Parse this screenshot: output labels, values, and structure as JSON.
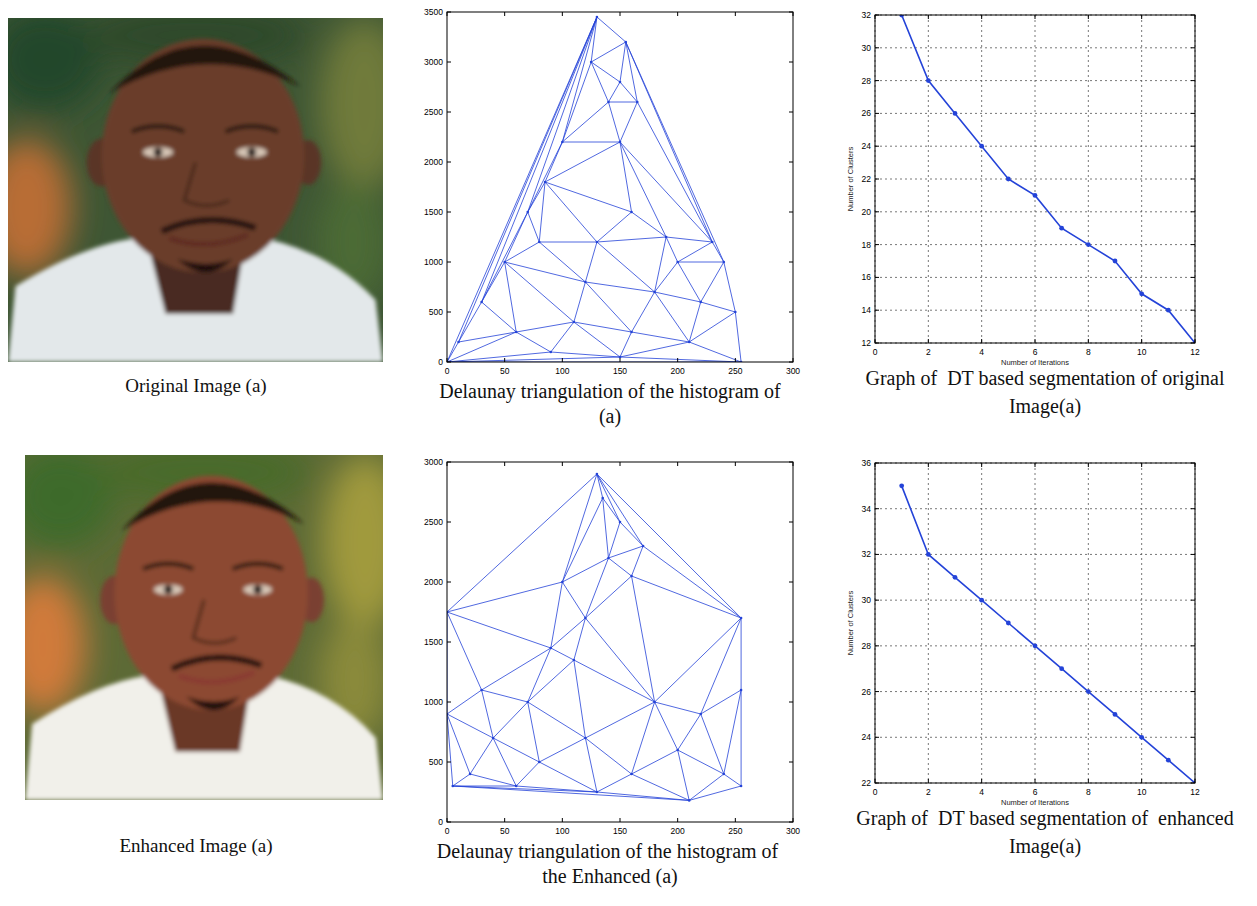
{
  "images": [
    {
      "caption": "Original Image (a)"
    },
    {
      "caption": "Enhanced Image (a)"
    }
  ],
  "chart_data": [
    {
      "type": "mesh",
      "title": "Delaunay triangulation of the histogram of (a)",
      "x": [
        0,
        130,
        255,
        230,
        85,
        150,
        140,
        165,
        100,
        150,
        70,
        160,
        50,
        200,
        240,
        30,
        120,
        180,
        220,
        250,
        10,
        60,
        110,
        160,
        210,
        90,
        150,
        80,
        130,
        190,
        125,
        155
      ],
      "y": [
        0,
        3450,
        0,
        1200,
        1800,
        2800,
        2600,
        2600,
        2200,
        2200,
        1500,
        1500,
        1000,
        1000,
        1000,
        600,
        800,
        700,
        600,
        500,
        200,
        300,
        400,
        300,
        200,
        100,
        50,
        1200,
        1200,
        1250,
        3000,
        3200
      ],
      "color": "#2443d8",
      "xlim": [
        0,
        300
      ],
      "ylim": [
        0,
        3500
      ],
      "xticks": [
        0,
        50,
        100,
        150,
        200,
        250,
        300
      ],
      "yticks": [
        0,
        500,
        1000,
        1500,
        2000,
        2500,
        3000,
        3500
      ]
    },
    {
      "type": "line",
      "title": "Graph of  DT based segmentation of original Image(a)",
      "x_label": "Number of Iterations",
      "y_label": "Number of Clusters",
      "x": [
        1,
        2,
        3,
        4,
        5,
        6,
        7,
        8,
        9,
        10,
        11,
        12
      ],
      "values": [
        32,
        28,
        26,
        24,
        22,
        21,
        19,
        18,
        17,
        15,
        14,
        12
      ],
      "color": "#2443d8",
      "marker": "dot",
      "xlim": [
        0,
        12
      ],
      "ylim": [
        12,
        32
      ],
      "xticks": [
        0,
        2,
        4,
        6,
        8,
        10,
        12
      ],
      "yticks": [
        12,
        14,
        16,
        18,
        20,
        22,
        24,
        26,
        28,
        30,
        32
      ],
      "grid": true
    },
    {
      "type": "mesh",
      "title": "Delaunay triangulation of the histogram of  the Enhanced (a)",
      "x": [
        130,
        0,
        255,
        255,
        255,
        210,
        5,
        0,
        20,
        150,
        140,
        170,
        90,
        110,
        70,
        180,
        40,
        120,
        200,
        240,
        60,
        130,
        100,
        120,
        80,
        160,
        220,
        30,
        135,
        160
      ],
      "y": [
        2900,
        1750,
        1700,
        1100,
        300,
        180,
        300,
        900,
        400,
        2500,
        2200,
        2300,
        1450,
        1350,
        1000,
        1000,
        700,
        700,
        600,
        400,
        300,
        250,
        2000,
        1700,
        500,
        400,
        900,
        1100,
        2700,
        2050
      ],
      "color": "#2443d8",
      "xlim": [
        0,
        300
      ],
      "ylim": [
        0,
        3000
      ],
      "xticks": [
        0,
        50,
        100,
        150,
        200,
        250,
        300
      ],
      "yticks": [
        0,
        500,
        1000,
        1500,
        2000,
        2500,
        3000
      ]
    },
    {
      "type": "line",
      "title": "Graph of  DT based segmentation of  enhanced Image(a)",
      "x_label": "Number of Iterations",
      "y_label": "Number of Clusters",
      "x": [
        1,
        2,
        3,
        4,
        5,
        6,
        7,
        8,
        9,
        10,
        11,
        12
      ],
      "values": [
        35,
        32,
        31,
        30,
        29,
        28,
        27,
        26,
        25,
        24,
        23,
        22
      ],
      "color": "#2443d8",
      "marker": "dot",
      "xlim": [
        0,
        12
      ],
      "ylim": [
        22,
        36
      ],
      "xticks": [
        0,
        2,
        4,
        6,
        8,
        10,
        12
      ],
      "yticks": [
        22,
        24,
        26,
        28,
        30,
        32,
        34,
        36
      ],
      "grid": true
    }
  ]
}
